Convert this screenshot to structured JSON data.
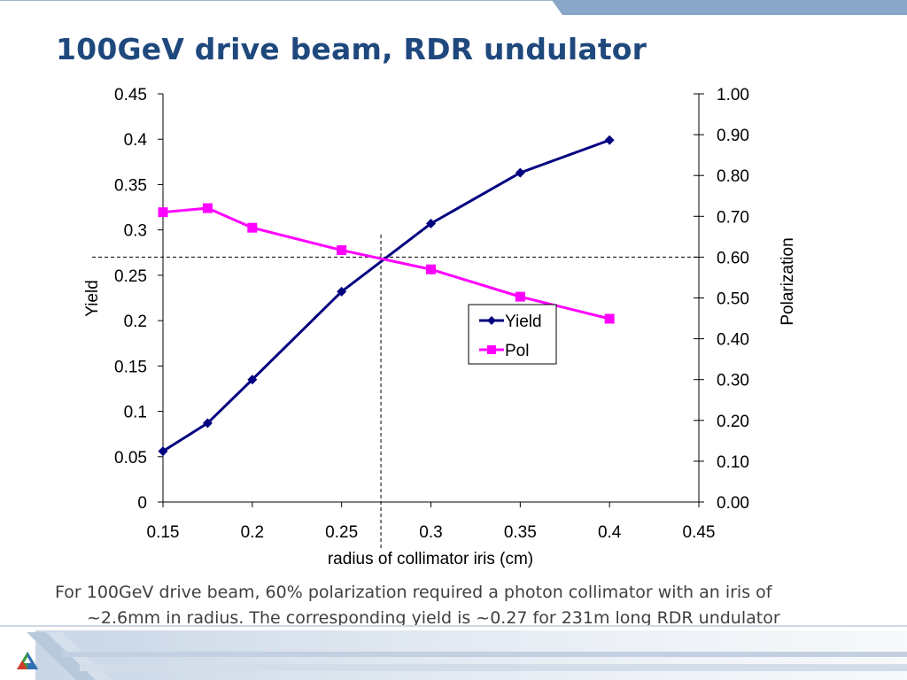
{
  "slide": {
    "title": "100GeV drive beam, RDR undulator",
    "caption_line1": "For 100GeV drive beam, 60% polarization required a photon collimator with an iris of",
    "caption_line2": "~2.6mm in radius.  The corresponding yield is ~0.27 for 231m long RDR undulator"
  },
  "colors": {
    "title": "#1f497d",
    "yield": "#000080",
    "pol": "#ff00ff",
    "accent_bar": "#8aa6c8"
  },
  "chart_data": {
    "type": "line",
    "xlabel": "radius of collimator iris (cm)",
    "ylabel": "Yield",
    "y2label": "Polarization",
    "xlim": [
      0.15,
      0.45
    ],
    "ylim": [
      0,
      0.45
    ],
    "y2lim": [
      0,
      1.0
    ],
    "x_ticks": [
      "0.15",
      "0.2",
      "0.25",
      "0.3",
      "0.35",
      "0.4",
      "0.45"
    ],
    "y_ticks": [
      "0",
      "0.05",
      "0.1",
      "0.15",
      "0.2",
      "0.25",
      "0.3",
      "0.35",
      "0.4",
      "0.45"
    ],
    "y2_ticks": [
      "0.00",
      "0.10",
      "0.20",
      "0.30",
      "0.40",
      "0.50",
      "0.60",
      "0.70",
      "0.80",
      "0.90",
      "1.00"
    ],
    "series": [
      {
        "name": "Yield",
        "axis": "left",
        "marker": "diamond",
        "color": "#000080",
        "x": [
          0.15,
          0.175,
          0.2,
          0.25,
          0.3,
          0.35,
          0.4
        ],
        "y": [
          0.056,
          0.087,
          0.135,
          0.232,
          0.307,
          0.363,
          0.399
        ]
      },
      {
        "name": "Pol",
        "axis": "right",
        "marker": "square",
        "color": "#ff00ff",
        "x": [
          0.15,
          0.175,
          0.2,
          0.25,
          0.3,
          0.35,
          0.4
        ],
        "y": [
          0.71,
          0.72,
          0.672,
          0.617,
          0.57,
          0.503,
          0.449
        ]
      }
    ],
    "reference_lines": {
      "x": 0.272,
      "y2": 0.6
    },
    "legend_position": "right-center",
    "grid": false
  }
}
